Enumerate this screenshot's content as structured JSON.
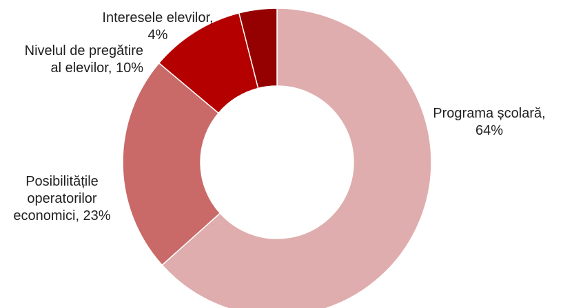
{
  "chart_data": {
    "type": "pie",
    "donut": true,
    "title": "",
    "slices": [
      {
        "label": "Programa școlară",
        "value": 64,
        "percent_label": "64%",
        "color": "#dfadad"
      },
      {
        "label": "Posibilitățile operatorilor economici",
        "value": 23,
        "percent_label": "23%",
        "color": "#c96a69"
      },
      {
        "label": "Nivelul de pregătire al elevilor",
        "value": 10,
        "percent_label": "10%",
        "color": "#b50000"
      },
      {
        "label": "Interesele elevilor",
        "value": 4,
        "percent_label": "4%",
        "color": "#950000"
      }
    ],
    "data_labels": [
      {
        "lines": [
          "Programa școlară,",
          "64%"
        ],
        "anchor": "middle"
      },
      {
        "lines": [
          "Posibilitățile",
          "operatorilor",
          "economici, 23%"
        ],
        "anchor": "middle"
      },
      {
        "lines": [
          "Nivelul de pregătire",
          "al elevilor, 10%"
        ],
        "anchor": "end"
      },
      {
        "lines": [
          "Interesele elevilor,",
          "4%"
        ],
        "anchor": "middle"
      }
    ],
    "legend": "none"
  }
}
